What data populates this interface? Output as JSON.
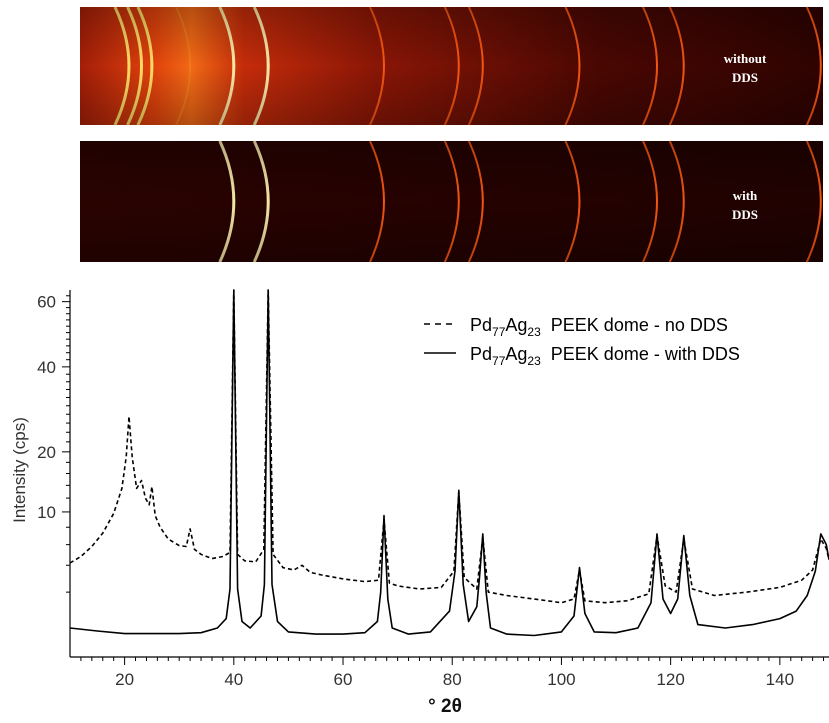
{
  "panels": [
    {
      "label_line1": "without",
      "label_line2": "DDS"
    },
    {
      "label_line1": "with",
      "label_line2": "DDS"
    }
  ],
  "chart_data": {
    "type": "line",
    "xlabel": "° 2θ",
    "ylabel": "Intensity (cps)",
    "y_scale": "sqrt",
    "xlim": [
      10,
      149
    ],
    "ylim": [
      0,
      64
    ],
    "xticks": [
      20,
      40,
      60,
      80,
      100,
      120,
      140
    ],
    "yticks": [
      10,
      20,
      40,
      60
    ],
    "grid": false,
    "legend_position": "top-right",
    "ring_positions": [
      40.0,
      46.3,
      67.5,
      81.2,
      85.6,
      103.3,
      117.5,
      122.4,
      147.5
    ],
    "amorphous_ring_positions": [
      20.8,
      23.1,
      25.0,
      32.0
    ],
    "series": [
      {
        "name": "Pd77Ag23 PEEK dome - no DDS",
        "name_main": "Pd",
        "name_sub1": "77",
        "name_mid": "Ag",
        "name_sub2": "23",
        "name_tail": "  PEEK dome - no DDS",
        "style": "dashed",
        "color": "#000000",
        "x": [
          10,
          12,
          14,
          16,
          18,
          19.5,
          20.3,
          20.8,
          21.4,
          22.2,
          23.1,
          23.8,
          24.5,
          25.0,
          25.6,
          26.5,
          28,
          30,
          31.3,
          32.0,
          32.8,
          34,
          36,
          38,
          39.3,
          40.0,
          40.7,
          42,
          44,
          45.5,
          46.3,
          47.2,
          49,
          51,
          52.5,
          54,
          56,
          60,
          64,
          66.5,
          67.5,
          68.5,
          70,
          74,
          78,
          80.3,
          81.2,
          82.2,
          84.5,
          85.6,
          86.6,
          90,
          95,
          100,
          102.3,
          103.3,
          104.3,
          108,
          112,
          116,
          117.5,
          119,
          121,
          122.4,
          124,
          128,
          134,
          140,
          144,
          146,
          147.5,
          148.5,
          149
        ],
        "y": [
          4.2,
          4.8,
          5.8,
          7.3,
          9.8,
          13.5,
          19,
          27.5,
          19,
          13.5,
          14.8,
          12,
          11,
          13.8,
          9.5,
          8.0,
          6.6,
          5.9,
          5.8,
          7.8,
          5.5,
          5.0,
          4.6,
          4.8,
          5.2,
          64,
          5.0,
          4.4,
          4.3,
          5.5,
          64,
          5.0,
          3.8,
          3.6,
          4.0,
          3.4,
          3.2,
          2.9,
          2.7,
          2.8,
          9.0,
          2.6,
          2.4,
          2.2,
          2.3,
          3.5,
          13.0,
          3.0,
          2.2,
          6.8,
          2.0,
          1.8,
          1.6,
          1.4,
          1.6,
          3.6,
          1.5,
          1.4,
          1.5,
          1.9,
          7.0,
          2.4,
          2.0,
          6.6,
          2.2,
          1.8,
          2.0,
          2.3,
          2.8,
          3.6,
          6.6,
          5.6,
          4.5
        ]
      },
      {
        "name": "Pd77Ag23 PEEK dome - with DDS",
        "name_main": "Pd",
        "name_sub1": "77",
        "name_mid": "Ag",
        "name_sub2": "23",
        "name_tail": "  PEEK dome - with DDS",
        "style": "solid",
        "color": "#000000",
        "x": [
          10,
          15,
          20,
          25,
          30,
          34,
          37,
          38.6,
          39.3,
          40.0,
          40.7,
          41.5,
          43,
          45.0,
          45.6,
          46.3,
          47.0,
          48,
          50,
          55,
          60,
          64,
          66.3,
          66.9,
          67.5,
          68.2,
          69,
          72,
          76,
          79.5,
          80.5,
          81.2,
          82.0,
          83,
          84.5,
          85.0,
          85.6,
          86.2,
          87,
          90,
          95,
          100,
          102.3,
          103.3,
          104.3,
          106,
          110,
          114,
          116.4,
          117.5,
          118.6,
          120,
          121.3,
          122.4,
          123.5,
          125,
          130,
          135,
          140,
          143,
          145,
          146.5,
          147.5,
          148.5,
          149
        ],
        "y": [
          0.4,
          0.32,
          0.26,
          0.26,
          0.26,
          0.28,
          0.4,
          0.7,
          2.2,
          64,
          2.2,
          0.6,
          0.4,
          0.8,
          2.5,
          64,
          2.5,
          0.6,
          0.3,
          0.25,
          0.25,
          0.28,
          0.6,
          2.0,
          9.5,
          1.6,
          0.4,
          0.25,
          0.3,
          1.0,
          3.5,
          13.2,
          2.5,
          0.6,
          1.2,
          3.0,
          7.2,
          2.0,
          0.4,
          0.25,
          0.22,
          0.3,
          0.8,
          3.8,
          0.9,
          0.3,
          0.28,
          0.4,
          1.4,
          7.2,
          1.6,
          0.9,
          1.6,
          7.0,
          1.8,
          0.5,
          0.4,
          0.5,
          0.7,
          1.0,
          1.8,
          3.5,
          7.2,
          6.0,
          4.5
        ]
      }
    ]
  }
}
